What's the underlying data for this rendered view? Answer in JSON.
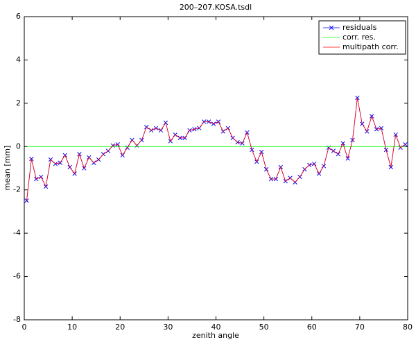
{
  "chart_data": {
    "type": "line",
    "title": "200–207.KOSA.tsdl",
    "x_label": "zenith angle",
    "y_label": "mean  [mm]",
    "x": [
      0.5,
      1.5,
      2.5,
      3.5,
      4.5,
      5.5,
      6.5,
      7.5,
      8.5,
      9.5,
      10.5,
      11.5,
      12.5,
      13.5,
      14.5,
      15.5,
      16.5,
      17.5,
      18.5,
      19.5,
      20.5,
      21.5,
      22.5,
      23.5,
      24.5,
      25.5,
      26.5,
      27.5,
      28.5,
      29.5,
      30.5,
      31.5,
      32.5,
      33.5,
      34.5,
      35.5,
      36.5,
      37.5,
      38.5,
      39.5,
      40.5,
      41.5,
      42.5,
      43.5,
      44.5,
      45.5,
      46.5,
      47.5,
      48.5,
      49.5,
      50.5,
      51.5,
      52.5,
      53.5,
      54.5,
      55.5,
      56.5,
      57.5,
      58.5,
      59.5,
      60.5,
      61.5,
      62.5,
      63.5,
      64.5,
      65.5,
      66.5,
      67.5,
      68.5,
      69.5,
      70.5,
      71.5,
      72.5,
      73.5,
      74.5,
      75.5,
      76.5,
      77.5,
      78.5,
      79.5
    ],
    "series": [
      {
        "name": "residuals",
        "color": "#0000ff",
        "marker": "x",
        "values": [
          -2.5,
          -0.57,
          -1.5,
          -1.4,
          -1.85,
          -0.6,
          -0.8,
          -0.75,
          -0.4,
          -0.95,
          -1.25,
          -0.35,
          -1.0,
          -0.5,
          -0.75,
          -0.6,
          -0.35,
          -0.2,
          0.05,
          0.1,
          -0.4,
          -0.05,
          0.3,
          0.05,
          0.3,
          0.9,
          0.75,
          0.85,
          0.75,
          1.1,
          0.25,
          0.55,
          0.4,
          0.4,
          0.75,
          0.8,
          0.85,
          1.15,
          1.15,
          1.05,
          1.15,
          0.7,
          0.85,
          0.4,
          0.2,
          0.15,
          0.65,
          -0.15,
          -0.7,
          -0.25,
          -1.05,
          -1.5,
          -1.5,
          -0.95,
          -1.6,
          -1.45,
          -1.65,
          -1.4,
          -1.05,
          -0.85,
          -0.8,
          -1.25,
          -0.9,
          -0.05,
          -0.2,
          -0.35,
          0.15,
          -0.55,
          0.3,
          2.25,
          1.05,
          0.7,
          1.4,
          0.8,
          0.85,
          -0.15,
          -0.95,
          0.55,
          -0.05,
          0.1
        ]
      },
      {
        "name": "corr. res.",
        "color": "#00ff00",
        "values": [
          0,
          0,
          0,
          0,
          0,
          0,
          0,
          0,
          0,
          0,
          0,
          0,
          0,
          0,
          0,
          0,
          0,
          0,
          0,
          0,
          0,
          0,
          0,
          0,
          0,
          0,
          0,
          0,
          0,
          0,
          0,
          0,
          0,
          0,
          0,
          0,
          0,
          0,
          0,
          0,
          0,
          0,
          0,
          0,
          0,
          0,
          0,
          0,
          0,
          0,
          0,
          0,
          0,
          0,
          0,
          0,
          0,
          0,
          0,
          0,
          0,
          0,
          0,
          0,
          0,
          0,
          0,
          0,
          0,
          0,
          0,
          0,
          0,
          0,
          0,
          0,
          0,
          0,
          0,
          0
        ]
      },
      {
        "name": "multipath corr.",
        "color": "#ff0000",
        "values": [
          -2.5,
          -0.57,
          -1.5,
          -1.4,
          -1.85,
          -0.6,
          -0.8,
          -0.75,
          -0.4,
          -0.95,
          -1.25,
          -0.35,
          -1.0,
          -0.5,
          -0.75,
          -0.6,
          -0.35,
          -0.2,
          0.05,
          0.1,
          -0.4,
          -0.05,
          0.3,
          0.05,
          0.3,
          0.9,
          0.75,
          0.85,
          0.75,
          1.1,
          0.25,
          0.55,
          0.4,
          0.4,
          0.75,
          0.8,
          0.85,
          1.15,
          1.15,
          1.05,
          1.15,
          0.7,
          0.85,
          0.4,
          0.2,
          0.15,
          0.65,
          -0.15,
          -0.7,
          -0.25,
          -1.05,
          -1.5,
          -1.5,
          -0.95,
          -1.6,
          -1.45,
          -1.65,
          -1.4,
          -1.05,
          -0.85,
          -0.8,
          -1.25,
          -0.9,
          -0.05,
          -0.2,
          -0.35,
          0.15,
          -0.55,
          0.3,
          2.25,
          1.05,
          0.7,
          1.4,
          0.8,
          0.85,
          -0.15,
          -0.95,
          0.55,
          -0.05,
          0.1
        ]
      }
    ],
    "xlim": [
      0,
      80
    ],
    "xticks": [
      0,
      10,
      20,
      30,
      40,
      50,
      60,
      70,
      80
    ],
    "ylim": [
      -8,
      6
    ],
    "yticks": [
      -8,
      -6,
      -4,
      -2,
      0,
      2,
      4,
      6
    ],
    "grid": false,
    "legend": "upper right"
  }
}
